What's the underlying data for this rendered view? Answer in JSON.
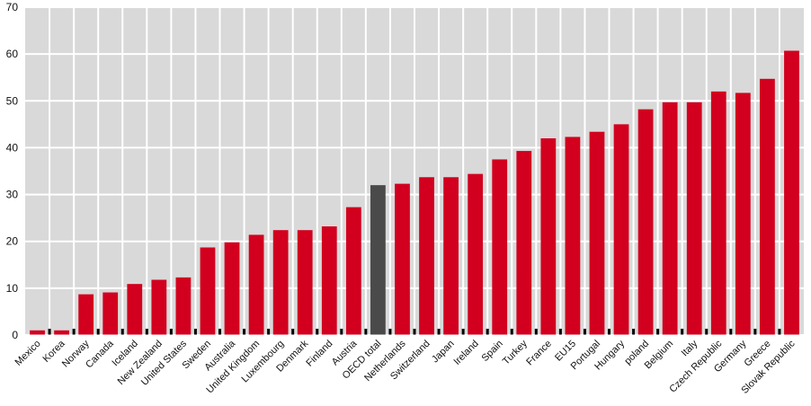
{
  "chart_data": {
    "type": "bar",
    "categories": [
      "Mexico",
      "Korea",
      "Norway",
      "Canada",
      "Iceland",
      "New Zealand",
      "United States",
      "Sweden",
      "Australia",
      "United Kingdom",
      "Luxembourg",
      "Denmark",
      "Finland",
      "Austria",
      "OECD total",
      "Netherlands",
      "Switzerland",
      "Japan",
      "Ireland",
      "Spain",
      "Turkey",
      "France",
      "EU15",
      "Portugal",
      "Hungary",
      "poland",
      "Belgium",
      "Italy",
      "Czech Republic",
      "Germany",
      "Greece",
      "Slovak Republic"
    ],
    "values": [
      1.0,
      1.0,
      8.7,
      9.1,
      10.9,
      11.8,
      12.3,
      18.7,
      19.8,
      21.4,
      22.4,
      22.4,
      23.2,
      27.3,
      32.0,
      32.3,
      33.7,
      33.7,
      34.4,
      37.5,
      39.3,
      42.0,
      42.3,
      43.4,
      45.0,
      48.2,
      49.7,
      49.7,
      52.0,
      51.7,
      54.7,
      60.7
    ],
    "highlight_category": "OECD total",
    "ylim": [
      0,
      70
    ],
    "yticks": [
      0,
      10,
      20,
      30,
      40,
      50,
      60,
      70
    ],
    "grid": true,
    "colors": {
      "bar": "#d2001e",
      "highlight": "#4a4a4a",
      "background": "#d9d9d9",
      "grid": "#ffffff"
    },
    "title": "",
    "xlabel": "",
    "ylabel": ""
  }
}
